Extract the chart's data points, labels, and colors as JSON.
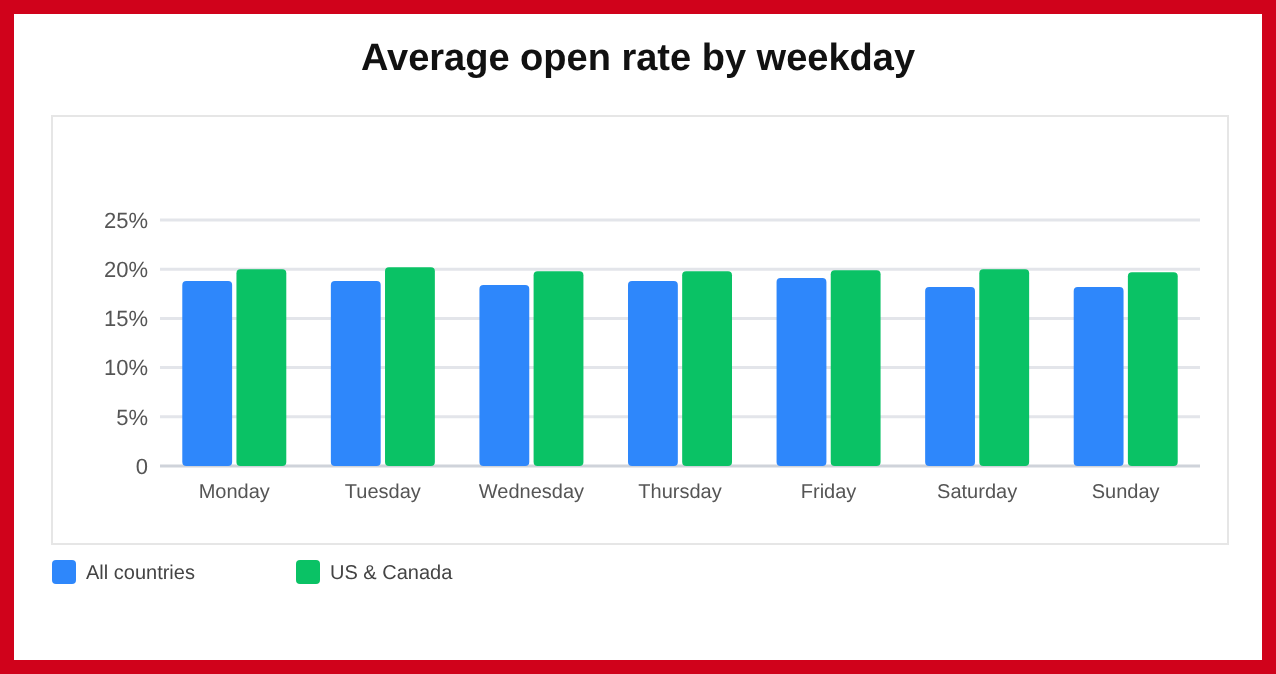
{
  "chart_data": {
    "type": "bar",
    "title": "Average open rate by weekday",
    "categories": [
      "Monday",
      "Tuesday",
      "Wednesday",
      "Thursday",
      "Friday",
      "Saturday",
      "Sunday"
    ],
    "series": [
      {
        "name": "All countries",
        "color": "#2e87fb",
        "values": [
          18.8,
          18.8,
          18.4,
          18.8,
          19.1,
          18.2,
          18.2
        ]
      },
      {
        "name": "US & Canada",
        "color": "#0ac265",
        "values": [
          20.0,
          20.2,
          19.8,
          19.8,
          19.9,
          20.0,
          19.7
        ]
      }
    ],
    "ylim": [
      0,
      25
    ],
    "yticks": [
      {
        "value": 0,
        "label": "0"
      },
      {
        "value": 5,
        "label": "5%"
      },
      {
        "value": 10,
        "label": "10%"
      },
      {
        "value": 15,
        "label": "15%"
      },
      {
        "value": 20,
        "label": "20%"
      },
      {
        "value": 25,
        "label": "25%"
      }
    ],
    "grid": "y",
    "legend": "bottom left"
  }
}
